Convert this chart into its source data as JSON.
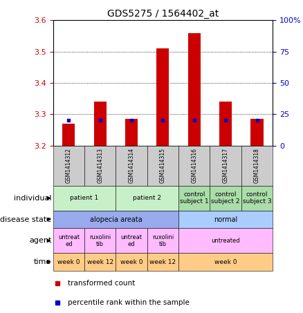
{
  "title": "GDS5275 / 1564402_at",
  "samples": [
    "GSM1414312",
    "GSM1414313",
    "GSM1414314",
    "GSM1414315",
    "GSM1414316",
    "GSM1414317",
    "GSM1414318"
  ],
  "transformed_count": [
    3.27,
    3.34,
    3.285,
    3.51,
    3.56,
    3.34,
    3.285
  ],
  "percentile_values": [
    20,
    20,
    20,
    20,
    20,
    20,
    20
  ],
  "bar_base": 3.2,
  "ylim": [
    3.2,
    3.6
  ],
  "y2lim": [
    0,
    100
  ],
  "yticks": [
    3.2,
    3.3,
    3.4,
    3.5,
    3.6
  ],
  "y2ticks": [
    0,
    25,
    50,
    75,
    100
  ],
  "bar_color": "#cc0000",
  "blue_color": "#0000cc",
  "axis_color_left": "#cc0000",
  "axis_color_right": "#0000cc",
  "legend_red": "transformed count",
  "legend_blue": "percentile rank within the sample",
  "indiv_groups": [
    {
      "cols": [
        0,
        1
      ],
      "label": "patient 1",
      "color": "#c8f0c8"
    },
    {
      "cols": [
        2,
        3
      ],
      "label": "patient 2",
      "color": "#c8f0c8"
    },
    {
      "cols": [
        4
      ],
      "label": "control\nsubject 1",
      "color": "#aaddaa"
    },
    {
      "cols": [
        5
      ],
      "label": "control\nsubject 2",
      "color": "#aaddaa"
    },
    {
      "cols": [
        6
      ],
      "label": "control\nsubject 3",
      "color": "#aaddaa"
    }
  ],
  "disease_groups": [
    {
      "cols": [
        0,
        1,
        2,
        3
      ],
      "label": "alopecia areata",
      "color": "#99aaee"
    },
    {
      "cols": [
        4,
        5,
        6
      ],
      "label": "normal",
      "color": "#aaccff"
    }
  ],
  "agent_groups": [
    {
      "cols": [
        0
      ],
      "label": "untreat\ned",
      "color": "#ffbbff"
    },
    {
      "cols": [
        1
      ],
      "label": "ruxolini\ntib",
      "color": "#ffbbff"
    },
    {
      "cols": [
        2
      ],
      "label": "untreat\ned",
      "color": "#ffbbff"
    },
    {
      "cols": [
        3
      ],
      "label": "ruxolini\ntib",
      "color": "#ffbbff"
    },
    {
      "cols": [
        4,
        5,
        6
      ],
      "label": "untreated",
      "color": "#ffbbff"
    }
  ],
  "time_groups": [
    {
      "cols": [
        0
      ],
      "label": "week 0",
      "color": "#ffcc88"
    },
    {
      "cols": [
        1
      ],
      "label": "week 12",
      "color": "#ffcc88"
    },
    {
      "cols": [
        2
      ],
      "label": "week 0",
      "color": "#ffcc88"
    },
    {
      "cols": [
        3
      ],
      "label": "week 12",
      "color": "#ffcc88"
    },
    {
      "cols": [
        4,
        5,
        6
      ],
      "label": "week 0",
      "color": "#ffcc88"
    }
  ]
}
